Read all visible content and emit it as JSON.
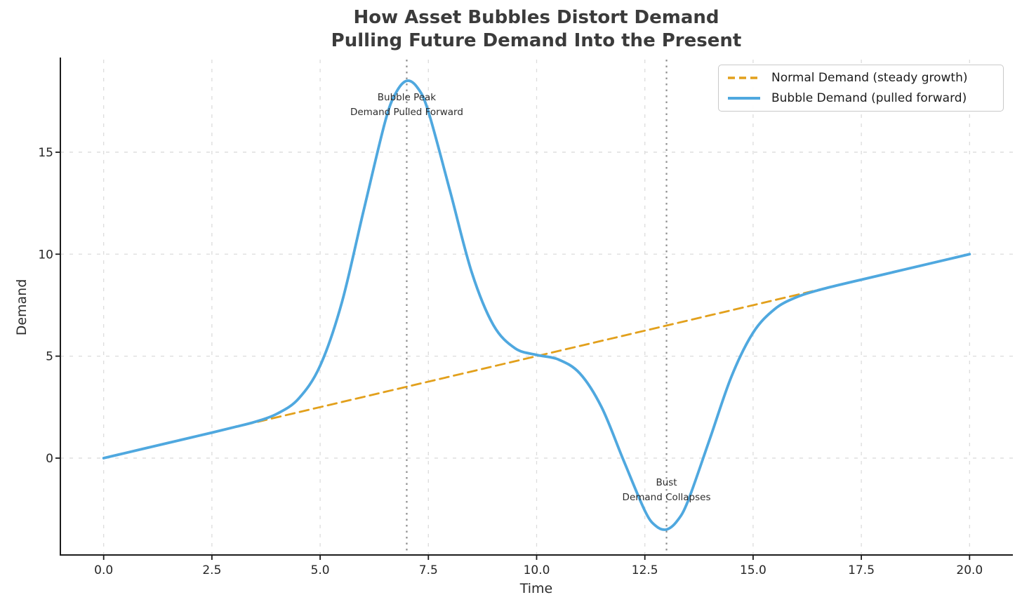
{
  "colors": {
    "background": "#ffffff",
    "grid": "#dcdcdc",
    "vline": "#8f8f8f",
    "spine": "#1c1c1c",
    "tick_label": "#262626",
    "title": "#3b3b3b",
    "normal_line": "#E2A01C",
    "bubble_line": "#4FA8DF",
    "legend_border": "#c9c9c9"
  },
  "chart_data": {
    "type": "line",
    "title": "How Asset Bubbles Distort Demand\nPulling Future Demand Into the Present",
    "title_lines": [
      "How Asset Bubbles Distort Demand",
      "Pulling Future Demand Into the Present"
    ],
    "xlabel": "Time",
    "ylabel": "Demand",
    "xlim": [
      -1,
      21
    ],
    "ylim": [
      -4.75,
      19.54
    ],
    "x_ticks": [
      0,
      2.5,
      5,
      7.5,
      10,
      12.5,
      15,
      17.5,
      20
    ],
    "x_tick_labels": [
      "0.0",
      "2.5",
      "5.0",
      "7.5",
      "10.0",
      "12.5",
      "15.0",
      "17.5",
      "20.0"
    ],
    "y_ticks": [
      0,
      5,
      10,
      15
    ],
    "y_tick_labels": [
      "0",
      "5",
      "10",
      "15"
    ],
    "grid": true,
    "legend_position": "upper right",
    "series": [
      {
        "id": "normal-demand",
        "name": "Normal Demand (steady growth)",
        "style": "dashed",
        "color": "#E2A01C",
        "width": 2.8,
        "points": [
          [
            0,
            0
          ],
          [
            20,
            10
          ]
        ]
      },
      {
        "id": "bubble-demand",
        "name": "Bubble Demand (pulled forward)",
        "style": "solid",
        "color": "#4FA8DF",
        "width": 3.8,
        "points": [
          [
            0,
            0
          ],
          [
            0.5,
            0.25
          ],
          [
            1,
            0.5
          ],
          [
            1.5,
            0.75
          ],
          [
            2,
            1
          ],
          [
            2.5,
            1.25
          ],
          [
            3,
            1.51
          ],
          [
            3.5,
            1.78
          ],
          [
            4,
            2.17
          ],
          [
            4.5,
            2.91
          ],
          [
            5,
            4.53
          ],
          [
            5.5,
            7.62
          ],
          [
            6,
            12.1
          ],
          [
            6.5,
            16.49
          ],
          [
            6.75,
            17.91
          ],
          [
            7,
            18.5
          ],
          [
            7.25,
            18.16
          ],
          [
            7.5,
            16.99
          ],
          [
            8,
            13.1
          ],
          [
            8.5,
            9.12
          ],
          [
            9,
            6.53
          ],
          [
            9.5,
            5.39
          ],
          [
            10,
            5.06
          ],
          [
            10.5,
            4.84
          ],
          [
            11,
            4.15
          ],
          [
            11.5,
            2.5
          ],
          [
            12,
            -0.07
          ],
          [
            12.5,
            -2.58
          ],
          [
            12.75,
            -3.32
          ],
          [
            13,
            -3.5
          ],
          [
            13.25,
            -3.07
          ],
          [
            13.5,
            -2.08
          ],
          [
            14,
            0.94
          ],
          [
            14.5,
            4.0
          ],
          [
            15,
            6.15
          ],
          [
            15.5,
            7.31
          ],
          [
            16,
            7.89
          ],
          [
            16.5,
            8.23
          ],
          [
            17,
            8.5
          ],
          [
            17.5,
            8.75
          ],
          [
            18,
            9
          ],
          [
            18.5,
            9.25
          ],
          [
            19,
            9.5
          ],
          [
            19.5,
            9.75
          ],
          [
            20,
            10
          ]
        ]
      }
    ],
    "vlines": [
      {
        "x": 7,
        "id": "bubble-peak",
        "style": "dotted",
        "color": "#8f8f8f"
      },
      {
        "x": 13,
        "id": "bust",
        "style": "dotted",
        "color": "#8f8f8f"
      }
    ],
    "annotations": [
      {
        "x": 7,
        "y": 17.65,
        "lines": [
          "Bubble Peak",
          "Demand Pulled Forward"
        ]
      },
      {
        "x": 13,
        "y": -1.24,
        "lines": [
          "Bust",
          "Demand Collapses"
        ]
      }
    ]
  }
}
